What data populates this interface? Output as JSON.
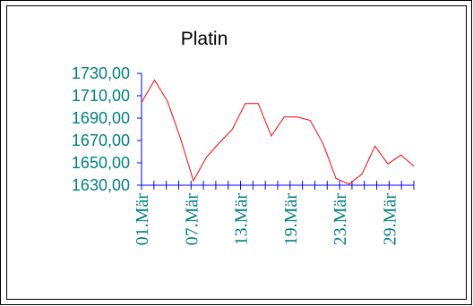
{
  "chart_data": {
    "type": "line",
    "title": "Platin",
    "xlabel": "",
    "ylabel": "",
    "ylim": [
      1630,
      1730
    ],
    "y_ticks": [
      "1730,00",
      "1710,00",
      "1690,00",
      "1670,00",
      "1650,00",
      "1630,00"
    ],
    "y_tick_values": [
      1730,
      1710,
      1690,
      1670,
      1650,
      1630
    ],
    "x_tick_labels": [
      "01.Mär",
      "07.Mär",
      "13.Mär",
      "19.Mär",
      "23.Mär",
      "29.Mär"
    ],
    "x_tick_label_indices": [
      0,
      4,
      8,
      12,
      16,
      20
    ],
    "num_ticks": 23,
    "grid": false,
    "legend": "none",
    "series": [
      {
        "color": "#ff0000",
        "values": [
          1704,
          1724,
          1705,
          1672,
          1634,
          1655,
          1668,
          1680,
          1703,
          1703,
          1674,
          1691,
          1691,
          1688,
          1667,
          1636,
          1631,
          1640,
          1665,
          1649,
          1657,
          1647
        ]
      }
    ],
    "axis_color": "#0000ff",
    "tick_label_color": "#008080"
  }
}
